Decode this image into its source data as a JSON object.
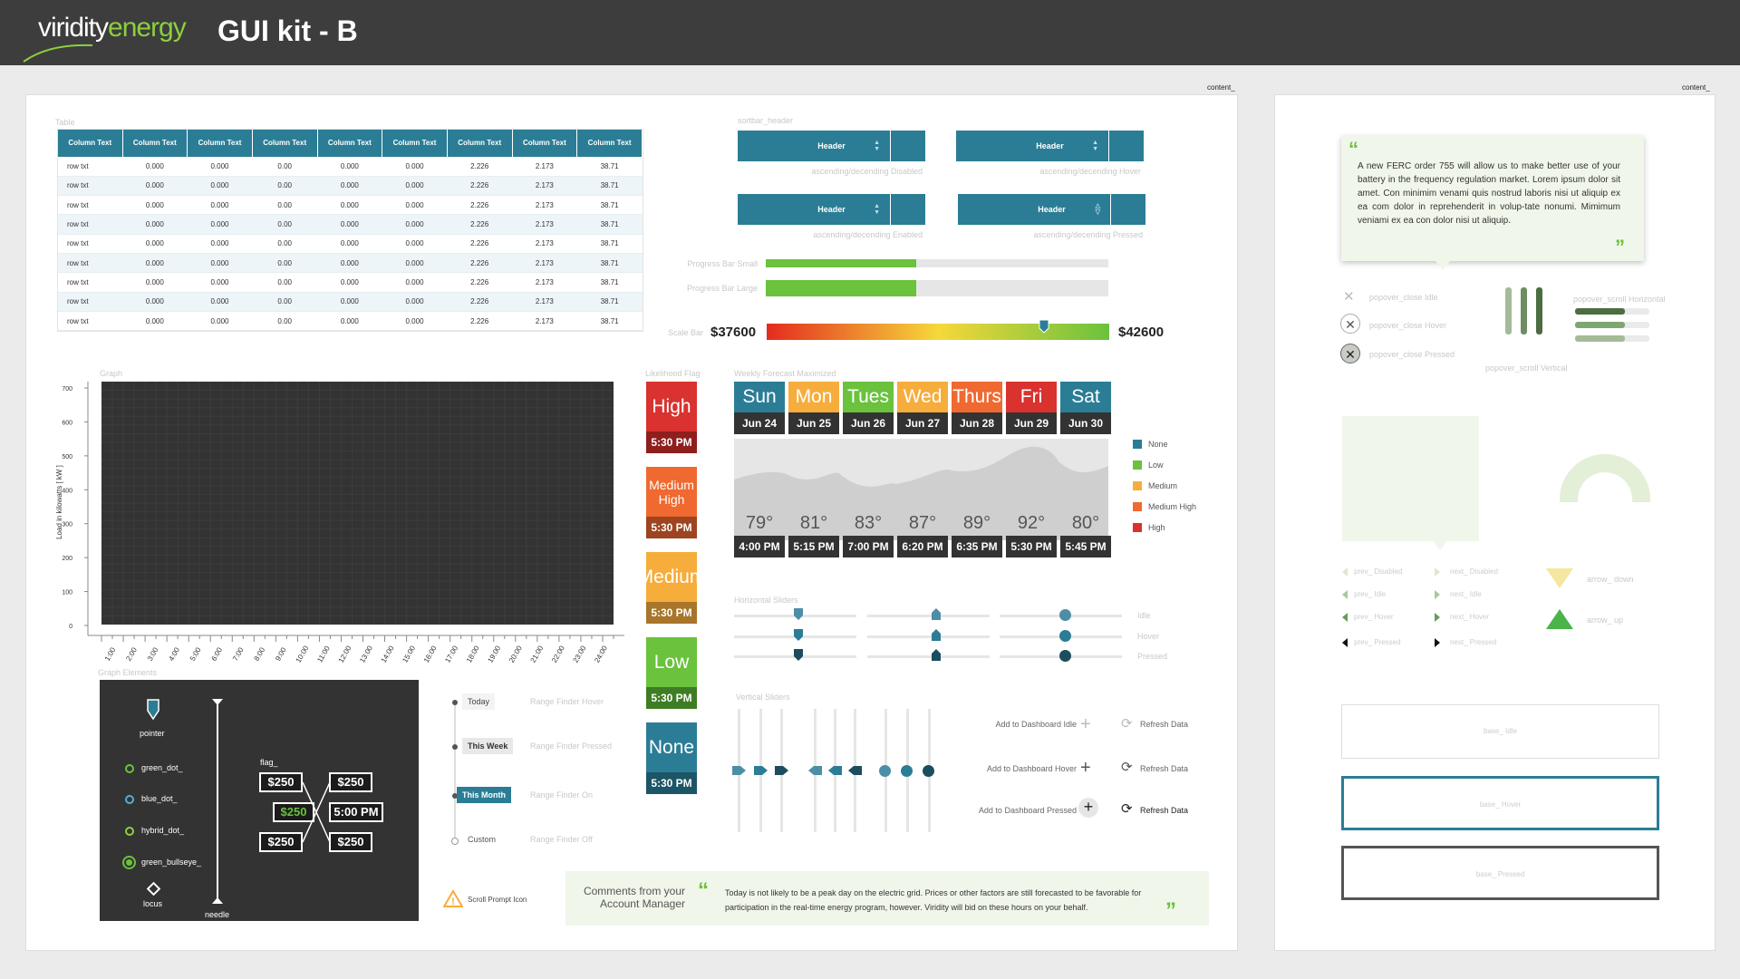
{
  "header": {
    "logo_part1": "viridity",
    "logo_part2": "energy",
    "title": "GUI kit - B"
  },
  "content_tags": [
    "content_",
    "content_"
  ],
  "table": {
    "section_label": "Table",
    "columns": [
      "Column Text",
      "Column Text",
      "Column Text",
      "Column Text",
      "Column Text",
      "Column Text",
      "Column Text",
      "Column Text",
      "Column Text"
    ],
    "rows": [
      [
        "row txt",
        "0.000",
        "0.000",
        "0.00",
        "0.000",
        "0.000",
        "2.226",
        "2.173",
        "38.71"
      ],
      [
        "row txt",
        "0.000",
        "0.000",
        "0.00",
        "0.000",
        "0.000",
        "2.226",
        "2.173",
        "38.71"
      ],
      [
        "row txt",
        "0.000",
        "0.000",
        "0.00",
        "0.000",
        "0.000",
        "2.226",
        "2.173",
        "38.71"
      ],
      [
        "row txt",
        "0.000",
        "0.000",
        "0.00",
        "0.000",
        "0.000",
        "2.226",
        "2.173",
        "38.71"
      ],
      [
        "row txt",
        "0.000",
        "0.000",
        "0.00",
        "0.000",
        "0.000",
        "2.226",
        "2.173",
        "38.71"
      ],
      [
        "row txt",
        "0.000",
        "0.000",
        "0.00",
        "0.000",
        "0.000",
        "2.226",
        "2.173",
        "38.71"
      ],
      [
        "row txt",
        "0.000",
        "0.000",
        "0.00",
        "0.000",
        "0.000",
        "2.226",
        "2.173",
        "38.71"
      ],
      [
        "row txt",
        "0.000",
        "0.000",
        "0.00",
        "0.000",
        "0.000",
        "2.226",
        "2.173",
        "38.71"
      ],
      [
        "row txt",
        "0.000",
        "0.000",
        "0.00",
        "0.000",
        "0.000",
        "2.226",
        "2.173",
        "38.71"
      ]
    ]
  },
  "sortbar": {
    "section_label": "sortbar_header",
    "header_label": "Header",
    "states": [
      "ascending/decending Disabled",
      "ascending/decending Hover",
      "ascending/decending Enabled",
      "ascending/decending Pressed"
    ]
  },
  "progress": {
    "small_label": "Progress Bar Small",
    "large_label": "Progress Bar Large",
    "value": 0.44
  },
  "scalebar": {
    "label": "Scale Bar",
    "min": "$37600",
    "max": "$42600",
    "pointer_fraction": 0.81
  },
  "chart_data": {
    "type": "line",
    "title": "",
    "section_label": "Graph",
    "ylabel": "Load in kilowatts [ kW ]",
    "yticks": [
      "0",
      "100",
      "200",
      "300",
      "400",
      "500",
      "600",
      "700"
    ],
    "ylim": [
      0,
      700
    ],
    "xticks": [
      "1:00",
      "2:00",
      "3:00",
      "4:00",
      "5:00",
      "6:00",
      "7:00",
      "8:00",
      "9:00",
      "10:00",
      "11:00",
      "12:00",
      "13:00",
      "14:00",
      "15:00",
      "16:00",
      "17:00",
      "18:00",
      "19:00",
      "20:00",
      "21:00",
      "22:00",
      "23:00",
      "24:00"
    ],
    "series": [],
    "grid": true
  },
  "likelihood": {
    "section_label": "Likelihood Flag",
    "flags": [
      {
        "level": "High",
        "time": "5:30 PM",
        "color": "#d9322f",
        "dark": "#8e1f1d"
      },
      {
        "level": "Medium High",
        "time": "5:30 PM",
        "color": "#ef6930",
        "dark": "#9e4420"
      },
      {
        "level": "Medium",
        "time": "5:30 PM",
        "color": "#f6ad3c",
        "dark": "#a8752a"
      },
      {
        "level": "Low",
        "time": "5:30 PM",
        "color": "#6ac23d",
        "dark": "#3e7d23"
      },
      {
        "level": "None",
        "time": "5:30 PM",
        "color": "#2b7d95",
        "dark": "#1c5566"
      }
    ]
  },
  "forecast": {
    "section_label": "Weekly Forecast Maximized",
    "days": [
      {
        "day": "Sun",
        "date": "Jun 24",
        "temp": "79°",
        "time": "4:00 PM",
        "color": "#2b7d95"
      },
      {
        "day": "Mon",
        "date": "Jun 25",
        "temp": "81°",
        "time": "5:15 PM",
        "color": "#f6ad3c"
      },
      {
        "day": "Tues",
        "date": "Jun 26",
        "temp": "83°",
        "time": "7:00 PM",
        "color": "#6ac23d"
      },
      {
        "day": "Wed",
        "date": "Jun 27",
        "temp": "87°",
        "time": "6:20 PM",
        "color": "#f6ad3c"
      },
      {
        "day": "Thurs",
        "date": "Jun 28",
        "temp": "89°",
        "time": "6:35 PM",
        "color": "#ef6930"
      },
      {
        "day": "Fri",
        "date": "Jun 29",
        "temp": "92°",
        "time": "5:30 PM",
        "color": "#d9322f"
      },
      {
        "day": "Sat",
        "date": "Jun 30",
        "temp": "80°",
        "time": "5:45 PM",
        "color": "#2b7d95"
      }
    ],
    "legend": [
      {
        "label": "None",
        "color": "#2b7d95"
      },
      {
        "label": "Low",
        "color": "#6ac23d"
      },
      {
        "label": "Medium",
        "color": "#f6ad3c"
      },
      {
        "label": "Medium High",
        "color": "#ef6930"
      },
      {
        "label": "High",
        "color": "#d9322f"
      }
    ]
  },
  "hsliders": {
    "section_label": "Horizontal Sliders",
    "states": [
      "Idle",
      "Hover",
      "Pressed"
    ]
  },
  "vsliders": {
    "section_label": "Vertical Sliders"
  },
  "dashboard": {
    "idle": "Add to Dashboard Idle",
    "hover": "Add to Dashboard Hover",
    "pressed": "Add to Dashboard Pressed",
    "refresh": "Refresh Data"
  },
  "graph_elements": {
    "section_label": "Graph Elements",
    "pointer": "pointer",
    "dots": [
      "green_dot_",
      "blue_dot_",
      "hybrid_dot_",
      "green_bullseye_"
    ],
    "locus": "locus",
    "needle": "needle",
    "flag_label": "flag_",
    "prices": [
      "$250",
      "$250",
      "$250",
      "5:00 PM",
      "$250",
      "$250"
    ]
  },
  "range_finder": {
    "items": [
      {
        "label": "Today",
        "state": "Range Finder Hover"
      },
      {
        "label": "This Week",
        "state": "Range Finder Pressed"
      },
      {
        "label": "This Month",
        "state": "Range Finder On"
      },
      {
        "label": "Custom",
        "state": "Range Finder Off"
      }
    ]
  },
  "scroll_prompt": "Scroll Prompt Icon",
  "comments": {
    "title": "Comments from your Account Manager",
    "text": "Today is not likely to be a peak day on the electric grid. Prices or other factors are still forecasted to be favorable for participation in the real-time energy program, however. Viridity will bid on these hours on your behalf."
  },
  "popover": {
    "text": "A new FERC order 755 will allow us to make better use of your battery in the frequency regulation market. Lorem ipsum dolor sit amet. Con minimim venami quis nostrud laboris nisi ut aliquip ex ea com dolor in reprehenderit in volup-tate nonumi. Mimimum veniami ex ea con dolor nisi ut aliquip.",
    "close_states": [
      "popover_close Idle",
      "popover_close Hover",
      "popover_close Pressed"
    ],
    "scroll_vertical": "popover_scroll Vertical",
    "scroll_horizontal": "popover_scroll Horizontal"
  },
  "nav": {
    "prev": [
      "prev_ Disabled",
      "prev_ Idle",
      "prev_ Hover",
      "prev_ Pressed"
    ],
    "next": [
      "next_ Disabled",
      "next_ Idle",
      "next_ Hover",
      "next_ Pressed"
    ],
    "arrow_down": "arrow_ down",
    "arrow_up": "arrow_ up"
  },
  "base": {
    "idle": "base_ Idle",
    "hover": "base_ Hover",
    "pressed": "base_ Pressed"
  }
}
